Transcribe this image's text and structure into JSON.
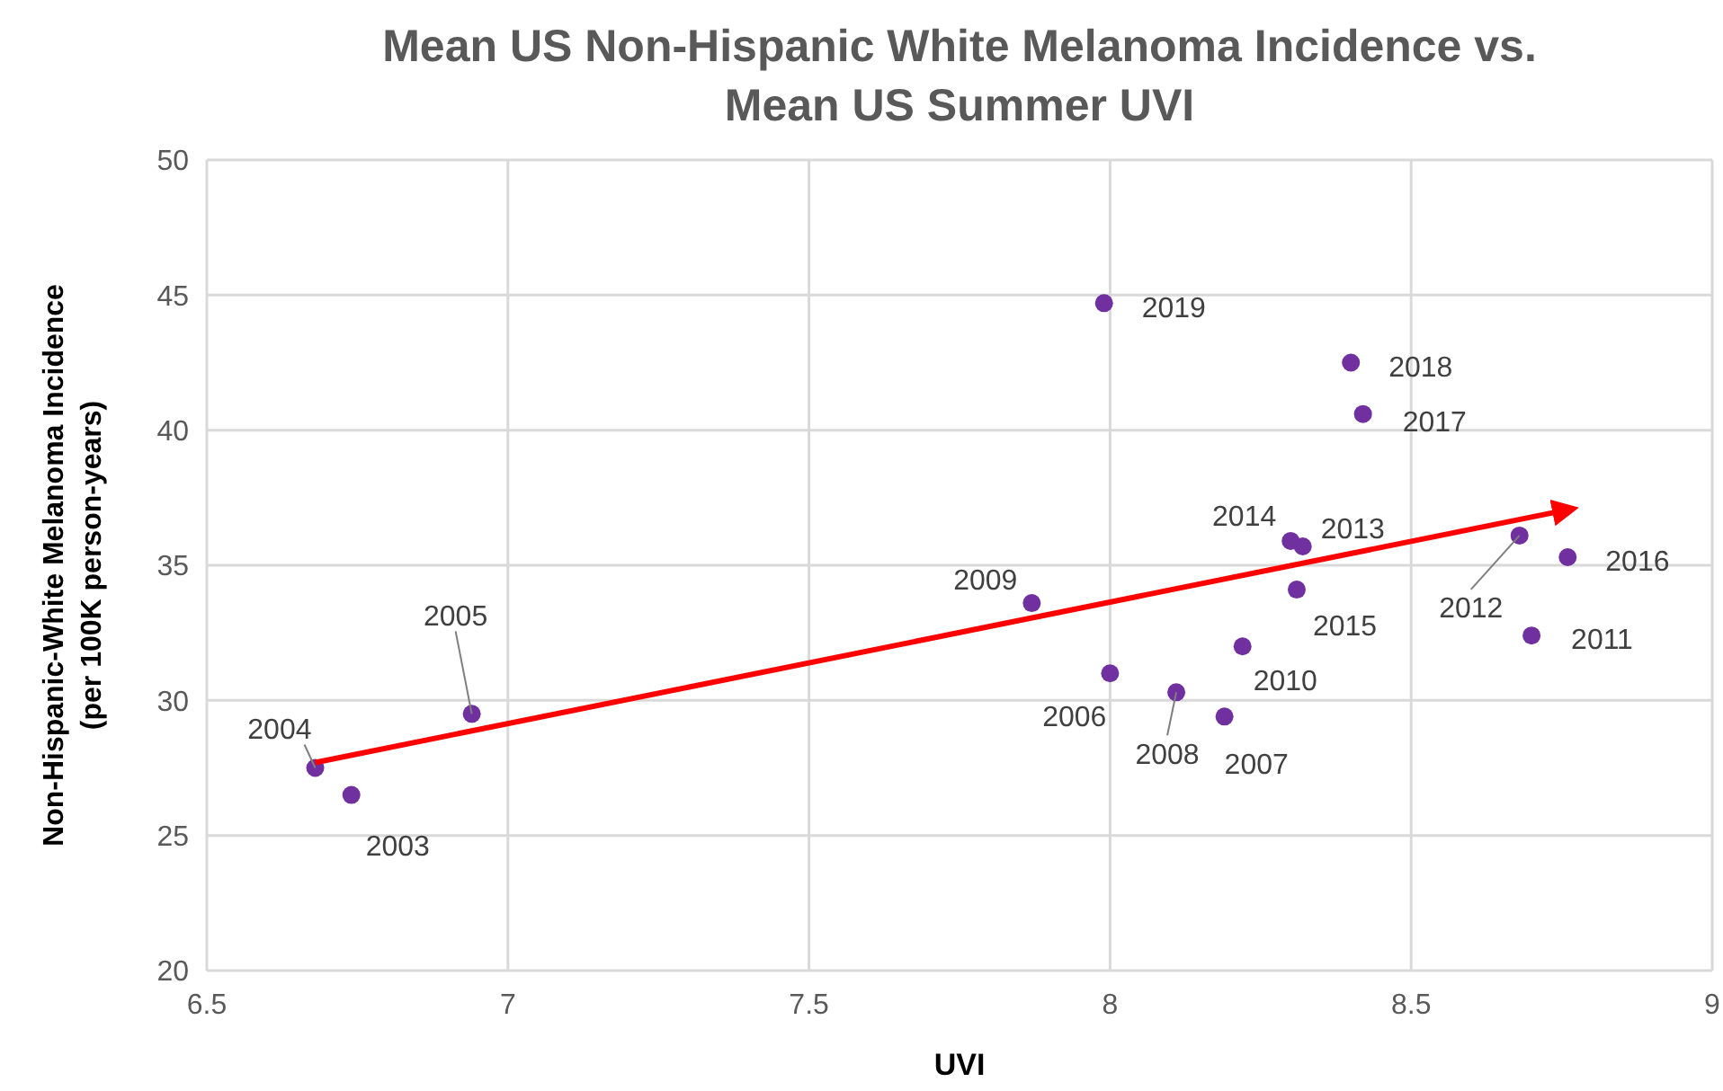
{
  "chart_data": {
    "type": "scatter",
    "title": "Mean US Non-Hispanic White Melanoma Incidence vs.\nMean US Summer UVI",
    "xlabel": "UVI",
    "ylabel": "Non-Hispanic-White Melanoma Incidence\n(per 100K person-years)",
    "xlim": [
      6.5,
      9
    ],
    "xticks": [
      6.5,
      7,
      7.5,
      8,
      8.5,
      9
    ],
    "ylim": [
      20,
      50
    ],
    "yticks": [
      20,
      25,
      30,
      35,
      40,
      45,
      50
    ],
    "grid": true,
    "series": [
      {
        "marker": "circle",
        "color": "#7030a0",
        "x": [
          6.74,
          6.68,
          6.94,
          8.0,
          8.19,
          8.11,
          7.87,
          8.22,
          8.7,
          8.68,
          8.32,
          8.3,
          8.31,
          8.76,
          8.42,
          8.4,
          7.99
        ],
        "values": [
          26.5,
          27.5,
          29.5,
          31.0,
          29.4,
          30.3,
          33.6,
          32.0,
          32.4,
          36.1,
          35.7,
          35.9,
          34.1,
          35.3,
          40.6,
          42.5,
          44.7
        ]
      },
      {
        "type": "line",
        "color": "#ff0000",
        "line_style": "solid",
        "marker": "none",
        "x": [
          6.68,
          8.77
        ],
        "values": [
          27.7,
          37.1
        ]
      }
    ],
    "annotations": [
      {
        "text": "2003",
        "x": 6.74,
        "y": 26.5
      },
      {
        "text": "2004",
        "x": 6.68,
        "y": 27.5
      },
      {
        "text": "2005",
        "x": 6.94,
        "y": 29.5
      },
      {
        "text": "2006",
        "x": 8.0,
        "y": 31.0
      },
      {
        "text": "2007",
        "x": 8.19,
        "y": 29.4
      },
      {
        "text": "2008",
        "x": 8.11,
        "y": 30.3
      },
      {
        "text": "2009",
        "x": 7.87,
        "y": 33.6
      },
      {
        "text": "2010",
        "x": 8.22,
        "y": 32.0
      },
      {
        "text": "2011",
        "x": 8.7,
        "y": 32.4
      },
      {
        "text": "2012",
        "x": 8.68,
        "y": 36.1
      },
      {
        "text": "2013",
        "x": 8.32,
        "y": 35.7
      },
      {
        "text": "2014",
        "x": 8.3,
        "y": 35.9
      },
      {
        "text": "2015",
        "x": 8.31,
        "y": 34.1
      },
      {
        "text": "2016",
        "x": 8.76,
        "y": 35.3
      },
      {
        "text": "2017",
        "x": 8.42,
        "y": 40.6
      },
      {
        "text": "2018",
        "x": 8.4,
        "y": 42.5
      },
      {
        "text": "2019",
        "x": 7.99,
        "y": 44.7
      }
    ]
  }
}
